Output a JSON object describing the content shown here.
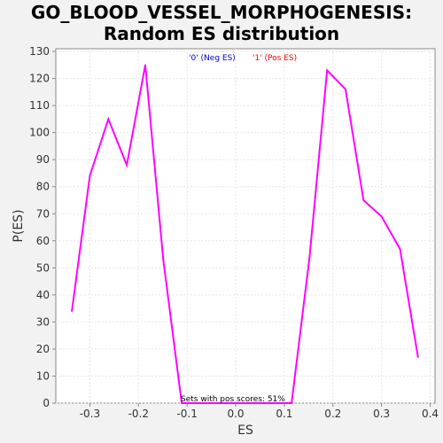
{
  "chart_data": {
    "type": "line",
    "title_line1": "GO_BLOOD_VESSEL_MORPHOGENESIS:",
    "title_line2": "Random ES distribution",
    "xlabel": "ES",
    "ylabel": "P(ES)",
    "xlim": [
      -0.37,
      0.41
    ],
    "ylim": [
      0,
      131
    ],
    "x_ticks": [
      "-0.3",
      "-0.2",
      "-0.1",
      "0.0",
      "0.1",
      "0.2",
      "0.3",
      "0.4"
    ],
    "x_tick_values": [
      -0.3,
      -0.2,
      -0.1,
      0.0,
      0.1,
      0.2,
      0.3,
      0.4
    ],
    "y_ticks": [
      "0",
      "10",
      "20",
      "30",
      "40",
      "50",
      "60",
      "70",
      "80",
      "90",
      "100",
      "110",
      "120",
      "130"
    ],
    "y_tick_values": [
      0,
      10,
      20,
      30,
      40,
      50,
      60,
      70,
      80,
      90,
      100,
      110,
      120,
      130
    ],
    "grid": true,
    "legend": [
      {
        "label": "'0' (Neg ES)",
        "color": "#0000cc"
      },
      {
        "label": "'1' (Pos ES)",
        "color": "#ff0000"
      }
    ],
    "legend_position": "top-center",
    "annotation": "Sets with pos scores: 51%",
    "series": [
      {
        "color": "#ff00ff",
        "x": [
          -0.337,
          -0.3,
          -0.262,
          -0.224,
          -0.186,
          -0.149,
          -0.111,
          -0.073,
          -0.036,
          0.002,
          0.04,
          0.077,
          0.115,
          0.152,
          0.188,
          0.226,
          0.263,
          0.3,
          0.338,
          0.375
        ],
        "y": [
          34,
          84,
          105,
          88,
          125,
          53,
          0,
          0,
          0,
          0,
          0,
          0,
          0,
          54,
          123,
          116,
          75,
          69,
          57,
          17
        ]
      }
    ]
  }
}
